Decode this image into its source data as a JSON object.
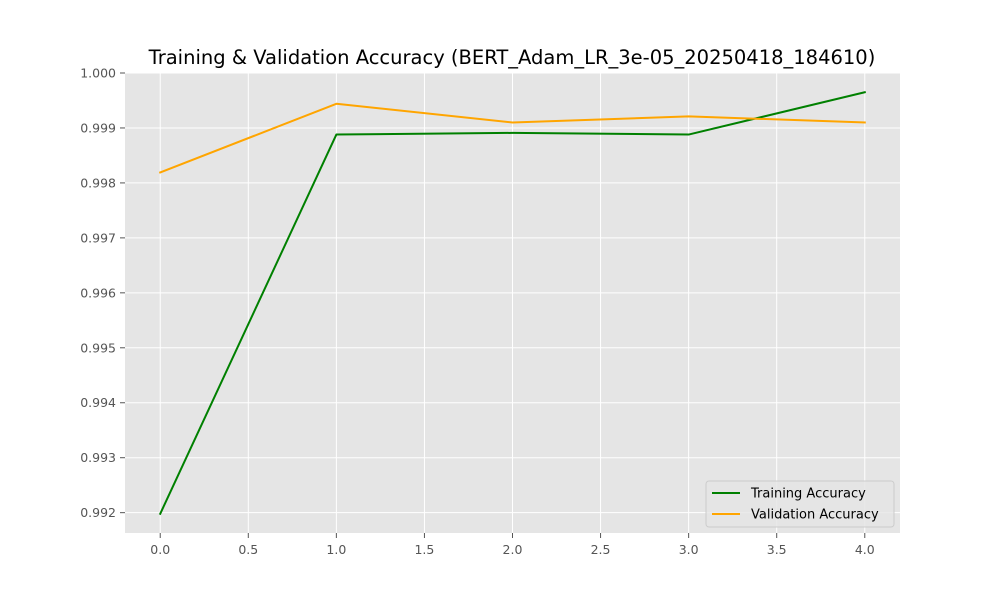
{
  "chart_data": {
    "type": "line",
    "title": "Training & Validation Accuracy (BERT_Adam_LR_3e-05_20250418_184610)",
    "xlabel": "",
    "ylabel": "",
    "x": [
      0,
      1,
      2,
      3,
      4
    ],
    "xlim": [
      -0.2,
      4.2
    ],
    "ylim": [
      0.99163,
      1.0
    ],
    "xticks": [
      "0.0",
      "0.5",
      "1.0",
      "1.5",
      "2.0",
      "2.5",
      "3.0",
      "3.5",
      "4.0"
    ],
    "xtick_values": [
      0,
      0.5,
      1,
      1.5,
      2,
      2.5,
      3,
      3.5,
      4
    ],
    "yticks": [
      "0.992",
      "0.993",
      "0.994",
      "0.995",
      "0.996",
      "0.997",
      "0.998",
      "0.999",
      "1.000"
    ],
    "ytick_values": [
      0.992,
      0.993,
      0.994,
      0.995,
      0.996,
      0.997,
      0.998,
      0.999,
      1.0
    ],
    "grid": true,
    "legend_position": "lower-right",
    "background_color": "#e5e5e5",
    "series": [
      {
        "name": "Training Accuracy",
        "color": "#008000",
        "values": [
          0.99198,
          0.99888,
          0.99891,
          0.99888,
          0.99965
        ]
      },
      {
        "name": "Validation Accuracy",
        "color": "#ffa500",
        "values": [
          0.99819,
          0.99944,
          0.9991,
          0.99921,
          0.9991
        ]
      }
    ]
  }
}
